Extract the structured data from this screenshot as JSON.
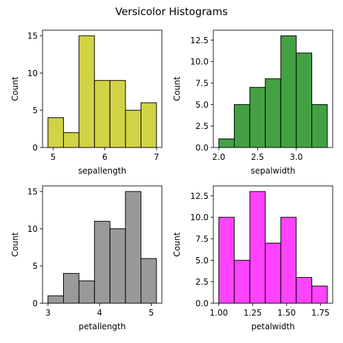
{
  "figure_title": "Versicolor Histograms",
  "ylabel": "Count",
  "chart_data": [
    {
      "type": "bar",
      "xlabel": "sepallength",
      "color": "#c7c716",
      "bin_edges": [
        4.9,
        5.2,
        5.5,
        5.8,
        6.1,
        6.4,
        6.7,
        7.0
      ],
      "values": [
        4,
        2,
        15,
        9,
        9,
        5,
        6
      ],
      "xlim": [
        4.795,
        7.105
      ],
      "ylim": [
        0,
        15.75
      ],
      "xticks": [
        5,
        6,
        7
      ],
      "xtick_labels": [
        "5",
        "6",
        "7"
      ],
      "yticks": [
        0,
        5,
        10,
        15
      ],
      "ytick_labels": [
        "0",
        "5",
        "10",
        "15"
      ]
    },
    {
      "type": "bar",
      "xlabel": "sepalwidth",
      "color": "#148a14",
      "bin_edges": [
        2.0,
        2.2,
        2.4,
        2.6,
        2.8,
        3.0,
        3.2,
        3.4
      ],
      "values": [
        1,
        5,
        7,
        8,
        13,
        11,
        5
      ],
      "xlim": [
        1.93,
        3.47
      ],
      "ylim": [
        0,
        13.65
      ],
      "xticks": [
        2.0,
        2.5,
        3.0
      ],
      "xtick_labels": [
        "2.0",
        "2.5",
        "3.0"
      ],
      "yticks": [
        0,
        2.5,
        5,
        7.5,
        10,
        12.5
      ],
      "ytick_labels": [
        "0.0",
        "2.5",
        "5.0",
        "7.5",
        "10.0",
        "12.5"
      ]
    },
    {
      "type": "bar",
      "xlabel": "petallength",
      "color": "#808080",
      "bin_edges": [
        3.0,
        3.3,
        3.6,
        3.9,
        4.2,
        4.5,
        4.8,
        5.1
      ],
      "values": [
        1,
        4,
        3,
        11,
        10,
        15,
        6
      ],
      "xlim": [
        2.895,
        5.205
      ],
      "ylim": [
        0,
        15.75
      ],
      "xticks": [
        3,
        4,
        5
      ],
      "xtick_labels": [
        "3",
        "4",
        "5"
      ],
      "yticks": [
        0,
        5,
        10,
        15
      ],
      "ytick_labels": [
        "0",
        "5",
        "10",
        "15"
      ]
    },
    {
      "type": "bar",
      "xlabel": "petalwidth",
      "color": "#ff14ff",
      "bin_edges": [
        1.0,
        1.114,
        1.229,
        1.343,
        1.457,
        1.571,
        1.686,
        1.8
      ],
      "values": [
        10,
        5,
        13,
        7,
        10,
        3,
        2
      ],
      "xlim": [
        0.96,
        1.84
      ],
      "ylim": [
        0,
        13.65
      ],
      "xticks": [
        1.0,
        1.25,
        1.5,
        1.75
      ],
      "xtick_labels": [
        "1.00",
        "1.25",
        "1.50",
        "1.75"
      ],
      "yticks": [
        0,
        2.5,
        5,
        7.5,
        10,
        12.5
      ],
      "ytick_labels": [
        "0.0",
        "2.5",
        "5.0",
        "7.5",
        "10.0",
        "12.5"
      ]
    }
  ]
}
